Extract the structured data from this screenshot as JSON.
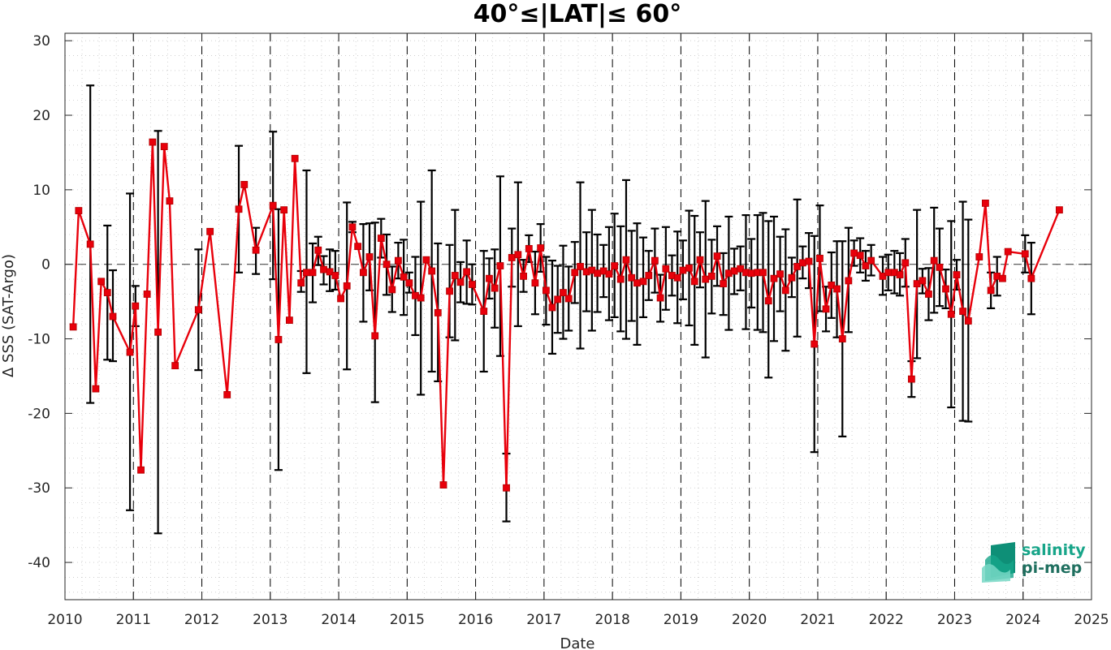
{
  "chart_data": {
    "type": "line",
    "title": "40°≤|LAT|≤ 60°",
    "xlabel": "Date",
    "ylabel": "Δ SSS (SAT-Argo)",
    "xlim": [
      2010,
      2025
    ],
    "ylim": [
      -45,
      31
    ],
    "x_ticks": [
      "2010",
      "2011",
      "2012",
      "2013",
      "2014",
      "2015",
      "2016",
      "2017",
      "2018",
      "2019",
      "2020",
      "2021",
      "2022",
      "2023",
      "2024",
      "2025"
    ],
    "y_ticks": [
      "30",
      "20",
      "10",
      "0",
      "-10",
      "-20",
      "-30",
      "-40"
    ],
    "grid": "minor dotted",
    "year_separators": "dashed vertical lines at each year",
    "zero_line": "dashed horizontal line at 0",
    "marker": "filled square",
    "colors": {
      "series": "#e8000b",
      "error_bars": "#000000",
      "logo_teal": "#17a589"
    },
    "series": [
      {
        "points": [
          [
            2010.12,
            -8.4,
            null,
            null
          ],
          [
            2010.2,
            7.2,
            null,
            null
          ],
          [
            2010.37,
            2.7,
            24.0,
            -18.6
          ],
          [
            2010.45,
            -16.7,
            null,
            null
          ],
          [
            2010.53,
            -2.3,
            null,
            null
          ],
          [
            2010.62,
            -3.8,
            5.2,
            -12.8
          ],
          [
            2010.7,
            -7.0,
            -0.8,
            -13.0
          ],
          [
            2010.95,
            -11.8,
            9.5,
            -33.0
          ],
          [
            2011.03,
            -5.6,
            -2.9,
            -8.3
          ],
          [
            2011.11,
            -27.6,
            null,
            null
          ],
          [
            2011.2,
            -4.0,
            null,
            null
          ],
          [
            2011.28,
            16.4,
            null,
            null
          ],
          [
            2011.36,
            -9.1,
            17.9,
            -36.1
          ],
          [
            2011.45,
            15.8,
            null,
            null
          ],
          [
            2011.53,
            8.5,
            null,
            null
          ],
          [
            2011.61,
            -13.6,
            null,
            null
          ],
          [
            2011.95,
            -6.1,
            2.0,
            -14.2
          ],
          [
            2012.12,
            4.4,
            null,
            null
          ],
          [
            2012.37,
            -17.5,
            null,
            null
          ],
          [
            2012.54,
            7.4,
            15.9,
            -1.1
          ],
          [
            2012.62,
            10.7,
            null,
            null
          ],
          [
            2012.79,
            1.9,
            4.9,
            -1.3
          ],
          [
            2013.04,
            7.9,
            17.8,
            -2.0
          ],
          [
            2013.12,
            -10.1,
            7.4,
            -27.6
          ],
          [
            2013.2,
            7.3,
            null,
            null
          ],
          [
            2013.28,
            -7.5,
            null,
            null
          ],
          [
            2013.36,
            14.2,
            null,
            null
          ],
          [
            2013.45,
            -2.5,
            -0.9,
            -3.7
          ],
          [
            2013.53,
            -1.1,
            12.6,
            -14.6
          ],
          [
            2013.62,
            -1.1,
            2.8,
            -5.1
          ],
          [
            2013.7,
            1.9,
            3.7,
            -0.1
          ],
          [
            2013.78,
            -0.7,
            1.1,
            -2.7
          ],
          [
            2013.87,
            -1.0,
            2.0,
            -3.6
          ],
          [
            2013.95,
            -1.5,
            1.8,
            -3.4
          ],
          [
            2014.03,
            -4.6,
            null,
            null
          ],
          [
            2014.12,
            -2.9,
            8.3,
            -14.1
          ],
          [
            2014.2,
            5.0,
            5.7,
            4.3
          ],
          [
            2014.28,
            2.4,
            null,
            null
          ],
          [
            2014.36,
            -1.1,
            5.4,
            -7.7
          ],
          [
            2014.45,
            1.0,
            5.5,
            -3.5
          ],
          [
            2014.53,
            -9.6,
            5.6,
            -18.5
          ],
          [
            2014.62,
            3.5,
            6.1,
            0.9
          ],
          [
            2014.7,
            0.0,
            4.0,
            -4.1
          ],
          [
            2014.78,
            -3.4,
            -0.3,
            -6.4
          ],
          [
            2014.87,
            0.5,
            2.9,
            -1.9
          ],
          [
            2014.95,
            -1.7,
            3.3,
            -6.8
          ],
          [
            2015.03,
            -2.5,
            -1.1,
            -3.8
          ],
          [
            2015.12,
            -4.2,
            1.0,
            -9.5
          ],
          [
            2015.2,
            -4.5,
            8.4,
            -17.5
          ],
          [
            2015.28,
            0.6,
            null,
            null
          ],
          [
            2015.36,
            -0.9,
            12.6,
            -14.4
          ],
          [
            2015.45,
            -6.5,
            2.8,
            -15.7
          ],
          [
            2015.53,
            -29.6,
            null,
            null
          ],
          [
            2015.62,
            -3.6,
            2.6,
            -9.8
          ],
          [
            2015.7,
            -1.5,
            7.3,
            -10.2
          ],
          [
            2015.78,
            -2.4,
            0.3,
            -5.1
          ],
          [
            2015.87,
            -1.0,
            3.2,
            -5.3
          ],
          [
            2015.95,
            -2.7,
            0.0,
            -5.4
          ],
          [
            2016.12,
            -6.3,
            1.8,
            -14.4
          ],
          [
            2016.2,
            -1.9,
            0.8,
            -4.6
          ],
          [
            2016.28,
            -3.2,
            2.0,
            -8.5
          ],
          [
            2016.36,
            -0.2,
            11.8,
            -12.3
          ],
          [
            2016.45,
            -30.0,
            -25.4,
            -34.5
          ],
          [
            2016.53,
            0.9,
            4.8,
            -3.0
          ],
          [
            2016.62,
            1.3,
            11.0,
            -8.3
          ],
          [
            2016.7,
            -1.6,
            0.6,
            -3.7
          ],
          [
            2016.78,
            2.1,
            3.9,
            0.3
          ],
          [
            2016.87,
            -2.5,
            1.7,
            -6.7
          ],
          [
            2016.95,
            2.2,
            5.4,
            -1.0
          ],
          [
            2017.03,
            -3.5,
            1.0,
            -8.1
          ],
          [
            2017.12,
            -5.8,
            0.5,
            -12.0
          ],
          [
            2017.2,
            -4.7,
            -0.2,
            -9.2
          ],
          [
            2017.28,
            -3.8,
            2.5,
            -10.0
          ],
          [
            2017.36,
            -4.6,
            -0.3,
            -8.9
          ],
          [
            2017.45,
            -1.1,
            3.0,
            -5.2
          ],
          [
            2017.53,
            -0.3,
            11.0,
            -11.3
          ],
          [
            2017.62,
            -1.0,
            4.3,
            -6.3
          ],
          [
            2017.7,
            -0.8,
            7.3,
            -8.9
          ],
          [
            2017.78,
            -1.2,
            4.0,
            -6.4
          ],
          [
            2017.87,
            -0.9,
            2.6,
            -4.4
          ],
          [
            2017.95,
            -1.3,
            5.0,
            -7.5
          ],
          [
            2018.03,
            -0.2,
            6.8,
            -7.1
          ],
          [
            2018.12,
            -2.0,
            5.1,
            -9.0
          ],
          [
            2018.2,
            0.6,
            11.3,
            -10.0
          ],
          [
            2018.28,
            -1.8,
            4.5,
            -7.6
          ],
          [
            2018.36,
            -2.5,
            5.5,
            -10.8
          ],
          [
            2018.45,
            -2.3,
            3.6,
            -7.1
          ],
          [
            2018.53,
            -1.5,
            1.8,
            -4.8
          ],
          [
            2018.62,
            0.5,
            4.8,
            -3.8
          ],
          [
            2018.7,
            -4.5,
            -1.4,
            -7.7
          ],
          [
            2018.78,
            -0.6,
            5.0,
            -6.1
          ],
          [
            2018.87,
            -1.5,
            1.2,
            -4.2
          ],
          [
            2018.95,
            -1.8,
            4.4,
            -7.9
          ],
          [
            2019.03,
            -0.8,
            3.2,
            -4.7
          ],
          [
            2019.12,
            -0.5,
            7.2,
            -8.2
          ],
          [
            2019.2,
            -2.3,
            6.5,
            -10.8
          ],
          [
            2019.28,
            0.6,
            4.3,
            -3.1
          ],
          [
            2019.36,
            -2.0,
            8.5,
            -12.5
          ],
          [
            2019.45,
            -1.6,
            3.3,
            -6.6
          ],
          [
            2019.53,
            1.1,
            5.1,
            -2.9
          ],
          [
            2019.62,
            -2.6,
            1.5,
            -6.8
          ],
          [
            2019.7,
            -1.2,
            6.4,
            -8.8
          ],
          [
            2019.78,
            -0.9,
            2.1,
            -4.0
          ],
          [
            2019.87,
            -0.6,
            2.4,
            -3.5
          ],
          [
            2019.95,
            -1.1,
            6.6,
            -8.7
          ],
          [
            2020.03,
            -1.2,
            3.4,
            -5.8
          ],
          [
            2020.12,
            -1.1,
            6.6,
            -8.8
          ],
          [
            2020.2,
            -1.1,
            6.9,
            -9.1
          ],
          [
            2020.28,
            -4.9,
            5.8,
            -15.2
          ],
          [
            2020.36,
            -1.9,
            6.4,
            -10.3
          ],
          [
            2020.45,
            -1.3,
            3.7,
            -6.3
          ],
          [
            2020.53,
            -3.5,
            4.7,
            -11.6
          ],
          [
            2020.62,
            -1.8,
            0.9,
            -4.4
          ],
          [
            2020.7,
            -0.3,
            8.7,
            -9.7
          ],
          [
            2020.78,
            0.2,
            2.4,
            -1.9
          ],
          [
            2020.87,
            0.4,
            4.2,
            -3.2
          ],
          [
            2020.95,
            -10.7,
            3.8,
            -25.2
          ],
          [
            2021.03,
            0.8,
            7.9,
            -6.3
          ],
          [
            2021.12,
            -6.0,
            -3.0,
            -9.0
          ],
          [
            2021.2,
            -2.8,
            1.6,
            -7.2
          ],
          [
            2021.28,
            -3.3,
            3.1,
            -9.8
          ],
          [
            2021.36,
            -10.0,
            3.1,
            -23.1
          ],
          [
            2021.45,
            -2.2,
            4.9,
            -9.1
          ],
          [
            2021.53,
            1.5,
            3.2,
            -0.2
          ],
          [
            2021.62,
            1.2,
            3.5,
            -1.1
          ],
          [
            2021.7,
            -0.2,
            1.8,
            -2.2
          ],
          [
            2021.78,
            0.5,
            2.6,
            -1.5
          ],
          [
            2021.95,
            -1.6,
            1.0,
            -4.1
          ],
          [
            2022.03,
            -1.1,
            1.3,
            -3.5
          ],
          [
            2022.12,
            -1.1,
            1.8,
            -3.9
          ],
          [
            2022.2,
            -1.4,
            1.5,
            -4.2
          ],
          [
            2022.28,
            0.2,
            3.4,
            -3.0
          ],
          [
            2022.37,
            -15.4,
            -13.0,
            -17.8
          ],
          [
            2022.45,
            -2.6,
            7.3,
            -12.6
          ],
          [
            2022.53,
            -2.2,
            -0.6,
            -3.9
          ],
          [
            2022.62,
            -4.0,
            -0.5,
            -7.5
          ],
          [
            2022.7,
            0.5,
            7.6,
            -6.5
          ],
          [
            2022.78,
            -0.4,
            4.8,
            -5.6
          ],
          [
            2022.87,
            -3.3,
            -0.7,
            -5.9
          ],
          [
            2022.95,
            -6.7,
            5.8,
            -19.2
          ],
          [
            2023.03,
            -1.4,
            0.6,
            -3.4
          ],
          [
            2023.12,
            -6.3,
            8.4,
            -21.0
          ],
          [
            2023.2,
            -7.6,
            6.0,
            -21.1
          ],
          [
            2023.36,
            1.0,
            null,
            null
          ],
          [
            2023.45,
            8.2,
            null,
            null
          ],
          [
            2023.53,
            -3.5,
            -1.1,
            -5.9
          ],
          [
            2023.62,
            -1.6,
            1.0,
            -4.2
          ],
          [
            2023.7,
            -1.9,
            null,
            null
          ],
          [
            2023.78,
            1.7,
            null,
            null
          ],
          [
            2024.03,
            1.4,
            3.9,
            -1.1
          ],
          [
            2024.12,
            -1.9,
            2.9,
            -6.7
          ],
          [
            2024.53,
            7.3,
            null,
            null
          ]
        ]
      }
    ]
  },
  "logo": {
    "line1": "salinity",
    "line2": "pi-mep"
  }
}
